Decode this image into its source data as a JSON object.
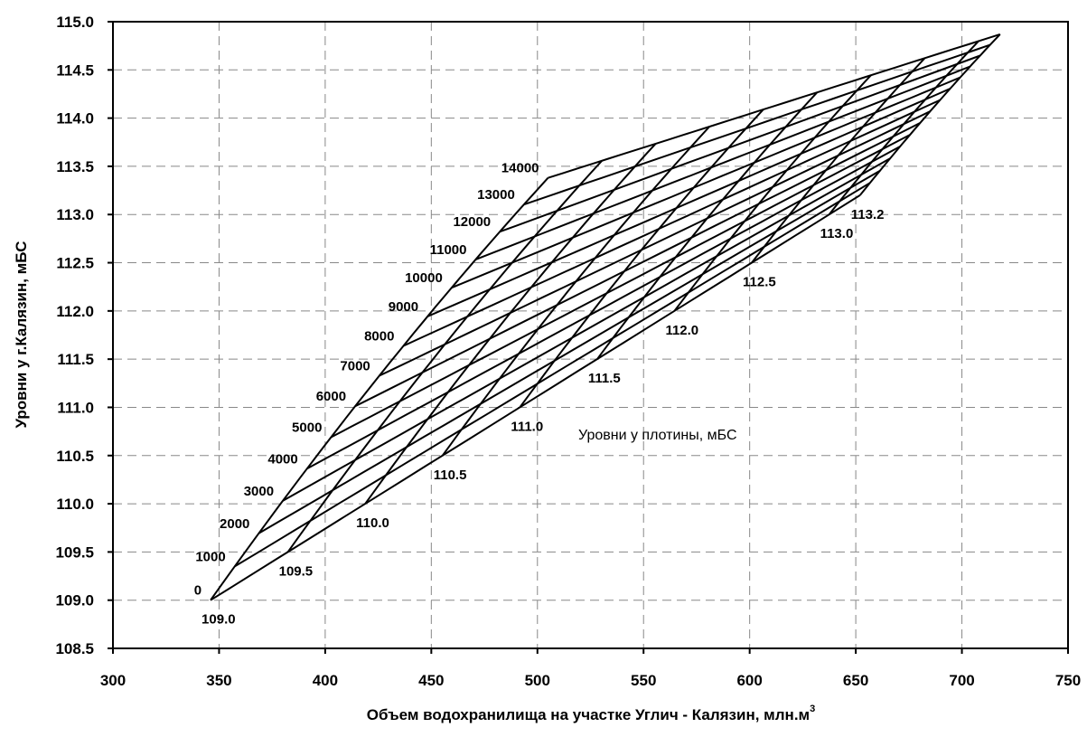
{
  "chart_data": {
    "type": "line",
    "xlabel": "Объем водохранилища на участке Углич - Калязин, млн.м",
    "xlabel_sup": "3",
    "ylabel": "Уровни у г.Калязин, мБС",
    "xlim": [
      300,
      750
    ],
    "ylim": [
      108.5,
      115.0
    ],
    "x_ticks": [
      300,
      350,
      400,
      450,
      500,
      550,
      600,
      650,
      700,
      750
    ],
    "x_tick_labels": [
      "300",
      "350",
      "400",
      "450",
      "500",
      "550",
      "600",
      "650",
      "700",
      "750"
    ],
    "y_ticks": [
      108.5,
      109.0,
      109.5,
      110.0,
      110.5,
      111.0,
      111.5,
      112.0,
      112.5,
      113.0,
      113.5,
      114.0,
      114.5,
      115.0
    ],
    "y_tick_labels": [
      "108.5",
      "109.0",
      "109.5",
      "110.0",
      "110.5",
      "111.0",
      "111.5",
      "112.0",
      "112.5",
      "113.0",
      "113.5",
      "114.0",
      "114.5",
      "115.0"
    ],
    "grid": true,
    "annotation": "Уровни у плотины, мБС",
    "discharge_curves": {
      "values": [
        0,
        1000,
        2000,
        3000,
        4000,
        5000,
        6000,
        7000,
        8000,
        9000,
        10000,
        11000,
        12000,
        13000,
        14000
      ],
      "labels": [
        "0",
        "1000",
        "2000",
        "3000",
        "4000",
        "5000",
        "6000",
        "7000",
        "8000",
        "9000",
        "10000",
        "11000",
        "12000",
        "13000",
        "14000"
      ]
    },
    "dam_level_curves": {
      "values": [
        109.0,
        109.5,
        110.0,
        110.5,
        111.0,
        111.5,
        112.0,
        112.5,
        113.0,
        113.2
      ],
      "labels": [
        "109.0",
        "109.5",
        "110.0",
        "110.5",
        "111.0",
        "111.5",
        "112.0",
        "112.5",
        "113.0",
        "113.2"
      ]
    },
    "corners": {
      "dam_low_q0": [
        346,
        109.0
      ],
      "dam_low_qmax": [
        505,
        113.38
      ],
      "dam_high_q0": [
        652,
        113.2
      ],
      "dam_high_qmax": [
        718,
        114.87
      ]
    }
  }
}
